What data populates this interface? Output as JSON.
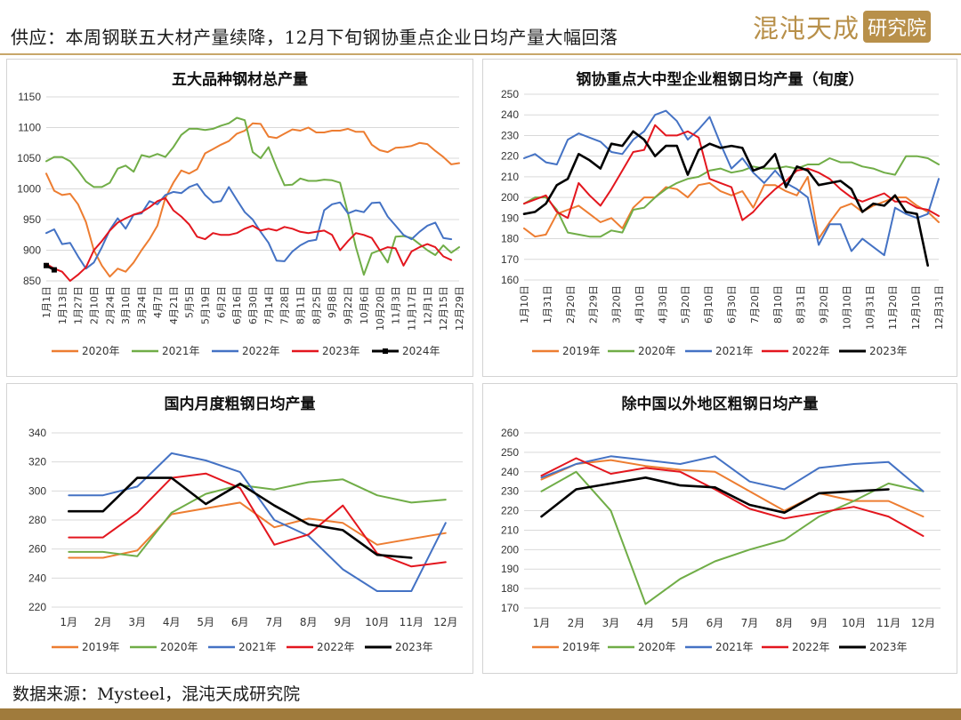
{
  "header": {
    "title": "供应：本周钢联五大材产量续降，12月下旬钢协重点企业日均产量大幅回落",
    "logo_text": "混沌天成",
    "logo_box": "研究院"
  },
  "footer": {
    "source": "数据来源：Mysteel，混沌天成研究院"
  },
  "colors": {
    "orange": "#ED7D31",
    "green": "#70AD47",
    "blue": "#4472C4",
    "red": "#E3161E",
    "black": "#000000",
    "accent": "#c8a76a"
  },
  "chart_data": [
    {
      "type": "line",
      "title": "五大品种钢材总产量",
      "xlabel": "",
      "ylabel": "",
      "ylim": [
        850,
        1150
      ],
      "yticks": [
        850,
        900,
        950,
        1000,
        1050,
        1100,
        1150
      ],
      "x_tick_labels": [
        "1月1日",
        "1月13日",
        "1月27日",
        "2月10日",
        "2月24日",
        "3月10日",
        "3月24日",
        "4月7日",
        "4月21日",
        "5月5日",
        "5月19日",
        "6月2日",
        "6月16日",
        "6月30日",
        "7月14日",
        "7月28日",
        "8月11日",
        "8月25日",
        "9月8日",
        "9月22日",
        "10月6日",
        "10月20日",
        "11月3日",
        "11月17日",
        "12月1日",
        "12月15日",
        "12月29日"
      ],
      "grid": true,
      "legend": "bottom",
      "series": [
        {
          "name": "2020年",
          "color": "orange",
          "marker": false,
          "values": [
            1025,
            997,
            990,
            992,
            975,
            946,
            900,
            875,
            857,
            870,
            865,
            880,
            900,
            918,
            940,
            985,
            1010,
            1030,
            1025,
            1032,
            1058,
            1065,
            1072,
            1078,
            1090,
            1095,
            1107,
            1106,
            1085,
            1083,
            1090,
            1097,
            1095,
            1100,
            1092,
            1092,
            1095,
            1095,
            1098,
            1093,
            1093,
            1072,
            1063,
            1060,
            1067,
            1068,
            1070,
            1075,
            1073,
            1062,
            1052,
            1040,
            1042
          ]
        },
        {
          "name": "2021年",
          "color": "green",
          "marker": false,
          "values": [
            1045,
            1052,
            1052,
            1045,
            1030,
            1012,
            1003,
            1003,
            1010,
            1033,
            1038,
            1028,
            1055,
            1052,
            1057,
            1052,
            1068,
            1088,
            1098,
            1098,
            1096,
            1098,
            1103,
            1107,
            1116,
            1112,
            1060,
            1050,
            1068,
            1035,
            1006,
            1007,
            1017,
            1013,
            1013,
            1015,
            1014,
            1010,
            960,
            905,
            860,
            895,
            900,
            880,
            922,
            923,
            920,
            910,
            900,
            892,
            908,
            896,
            905
          ]
        },
        {
          "name": "2022年",
          "color": "blue",
          "marker": false,
          "values": [
            928,
            934,
            910,
            912,
            890,
            870,
            880,
            905,
            933,
            952,
            935,
            958,
            960,
            980,
            975,
            990,
            995,
            993,
            1003,
            1008,
            990,
            978,
            980,
            1003,
            982,
            962,
            950,
            930,
            912,
            883,
            882,
            898,
            908,
            915,
            917,
            965,
            975,
            978,
            960,
            965,
            962,
            977,
            978,
            955,
            940,
            925,
            918,
            930,
            940,
            945,
            920,
            918
          ]
        },
        {
          "name": "2023年",
          "color": "red",
          "marker": false,
          "values": [
            878,
            870,
            865,
            850,
            860,
            872,
            900,
            915,
            932,
            945,
            952,
            958,
            962,
            970,
            980,
            985,
            965,
            955,
            942,
            922,
            918,
            928,
            925,
            925,
            928,
            935,
            940,
            932,
            935,
            932,
            938,
            935,
            930,
            928,
            930,
            932,
            925,
            900,
            915,
            928,
            925,
            920,
            900,
            905,
            903,
            875,
            898,
            905,
            910,
            905,
            890,
            884
          ]
        },
        {
          "name": "2024年",
          "color": "black",
          "marker": true,
          "values": [
            875,
            868
          ]
        }
      ]
    },
    {
      "type": "line",
      "title": "钢协重点大中型企业粗钢日均产量（旬度）",
      "xlabel": "",
      "ylabel": "",
      "ylim": [
        160,
        250
      ],
      "yticks": [
        160,
        170,
        180,
        190,
        200,
        210,
        220,
        230,
        240,
        250
      ],
      "x_tick_labels": [
        "1月10日",
        "1月31日",
        "2月20日",
        "2月29日",
        "3月20日",
        "4月10日",
        "4月30日",
        "5月20日",
        "6月10日",
        "6月30日",
        "7月20日",
        "8月10日",
        "8月31日",
        "9月20日",
        "10月10日",
        "10月31日",
        "11月20日",
        "12月10日",
        "12月31日"
      ],
      "grid": true,
      "legend": "bottom",
      "series": [
        {
          "name": "2019年",
          "color": "orange",
          "values": [
            185,
            181,
            182,
            192,
            194,
            196,
            192,
            188,
            190,
            185,
            195,
            200,
            200,
            205,
            204,
            200,
            206,
            207,
            203,
            201,
            203,
            195,
            206,
            206,
            203,
            201,
            210,
            180,
            188,
            195,
            197,
            193,
            196,
            198,
            200,
            200,
            196,
            193,
            188
          ]
        },
        {
          "name": "2020年",
          "color": "green",
          "values": [
            197,
            200,
            200,
            194,
            183,
            182,
            181,
            181,
            184,
            183,
            194,
            195,
            200,
            204,
            207,
            209,
            210,
            213,
            214,
            212,
            213,
            215,
            214,
            214,
            215,
            214,
            216,
            216,
            219,
            217,
            217,
            215,
            214,
            212,
            211,
            220,
            220,
            219,
            216
          ]
        },
        {
          "name": "2021年",
          "color": "blue",
          "values": [
            219,
            221,
            217,
            216,
            228,
            231,
            229,
            227,
            222,
            221,
            228,
            232,
            240,
            242,
            237,
            228,
            233,
            239,
            226,
            214,
            219,
            212,
            207,
            213,
            207,
            204,
            200,
            177,
            187,
            187,
            174,
            180,
            176,
            172,
            195,
            192,
            190,
            192,
            209
          ]
        },
        {
          "name": "2022年",
          "color": "red",
          "values": [
            197,
            199,
            201,
            193,
            190,
            207,
            201,
            196,
            204,
            213,
            222,
            223,
            235,
            230,
            230,
            232,
            229,
            209,
            207,
            205,
            189,
            193,
            199,
            204,
            208,
            213,
            214,
            212,
            209,
            204,
            200,
            198,
            200,
            202,
            198,
            198,
            195,
            194,
            191
          ]
        },
        {
          "name": "2023年",
          "color": "black",
          "values": [
            192,
            193,
            197,
            206,
            209,
            221,
            218,
            214,
            226,
            225,
            232,
            228,
            220,
            225,
            225,
            211,
            223,
            226,
            224,
            225,
            224,
            213,
            215,
            221,
            205,
            215,
            213,
            206,
            207,
            208,
            204,
            193,
            197,
            196,
            201,
            193,
            192,
            167
          ]
        }
      ]
    },
    {
      "type": "line",
      "title": "国内月度粗钢日均产量",
      "xlabel": "",
      "ylabel": "",
      "ylim": [
        220,
        340
      ],
      "yticks": [
        220,
        240,
        260,
        280,
        300,
        320,
        340
      ],
      "categories": [
        "1月",
        "2月",
        "3月",
        "4月",
        "5月",
        "6月",
        "7月",
        "8月",
        "9月",
        "10月",
        "11月",
        "12月"
      ],
      "grid": true,
      "legend": "bottom",
      "series": [
        {
          "name": "2019年",
          "color": "orange",
          "values": [
            254,
            254,
            259,
            284,
            288,
            292,
            275,
            281,
            278,
            263,
            267,
            271
          ]
        },
        {
          "name": "2020年",
          "color": "green",
          "values": [
            258,
            258,
            255,
            285,
            298,
            304,
            301,
            306,
            308,
            297,
            292,
            294
          ]
        },
        {
          "name": "2021年",
          "color": "blue",
          "values": [
            297,
            297,
            303,
            326,
            321,
            313,
            280,
            269,
            246,
            231,
            231,
            278
          ]
        },
        {
          "name": "2022年",
          "color": "red",
          "values": [
            268,
            268,
            285,
            309,
            312,
            302,
            263,
            270,
            290,
            257,
            248,
            251
          ]
        },
        {
          "name": "2023年",
          "color": "black",
          "values": [
            286,
            286,
            309,
            309,
            291,
            305,
            290,
            277,
            273,
            256,
            254,
            null
          ]
        }
      ]
    },
    {
      "type": "line",
      "title": "除中国以外地区粗钢日均产量",
      "xlabel": "",
      "ylabel": "",
      "ylim": [
        170,
        260
      ],
      "yticks": [
        170,
        180,
        190,
        200,
        210,
        220,
        230,
        240,
        250,
        260
      ],
      "categories": [
        "1月",
        "2月",
        "3月",
        "4月",
        "5月",
        "6月",
        "7月",
        "8月",
        "9月",
        "10月",
        "11月",
        "12月"
      ],
      "grid": true,
      "legend": "bottom",
      "series": [
        {
          "name": "2019年",
          "color": "orange",
          "values": [
            236,
            244,
            246,
            243,
            241,
            240,
            230,
            220,
            229,
            225,
            225,
            217
          ]
        },
        {
          "name": "2020年",
          "color": "green",
          "values": [
            230,
            240,
            220,
            172,
            185,
            194,
            200,
            205,
            217,
            225,
            234,
            230
          ]
        },
        {
          "name": "2021年",
          "color": "blue",
          "values": [
            237,
            244,
            248,
            246,
            244,
            248,
            235,
            231,
            242,
            244,
            245,
            230
          ]
        },
        {
          "name": "2022年",
          "color": "red",
          "values": [
            238,
            247,
            239,
            242,
            240,
            231,
            221,
            216,
            219,
            222,
            217,
            207
          ]
        },
        {
          "name": "2023年",
          "color": "black",
          "values": [
            217,
            231,
            234,
            237,
            233,
            232,
            223,
            219,
            229,
            230,
            231,
            null
          ]
        }
      ]
    }
  ]
}
